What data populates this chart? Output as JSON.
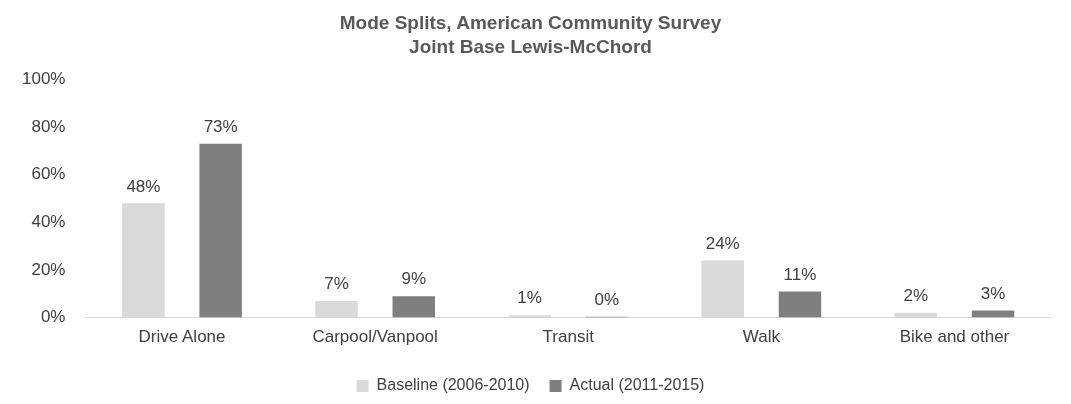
{
  "chart_data": {
    "type": "bar",
    "title": "Mode Splits, American Community Survey",
    "subtitle": "Joint Base Lewis-McChord",
    "categories": [
      "Drive Alone",
      "Carpool/Vanpool",
      "Transit",
      "Walk",
      "Bike and other"
    ],
    "series": [
      {
        "name": "Baseline (2006-2010)",
        "color": "#d9d9d9",
        "values": [
          48,
          7,
          1,
          24,
          2
        ],
        "value_labels": [
          "48%",
          "7%",
          "1%",
          "24%",
          "2%"
        ]
      },
      {
        "name": "Actual (2011-2015)",
        "color": "#7f7f7f",
        "values": [
          73,
          9,
          0.4,
          11,
          3
        ],
        "value_labels": [
          "73%",
          "9%",
          "0%",
          "11%",
          "3%"
        ]
      }
    ],
    "ylim": [
      0,
      100
    ],
    "yticks": [
      {
        "value": 0,
        "label": "0%"
      },
      {
        "value": 20,
        "label": "20%"
      },
      {
        "value": 40,
        "label": "40%"
      },
      {
        "value": 60,
        "label": "60%"
      },
      {
        "value": 80,
        "label": "80%"
      },
      {
        "value": 100,
        "label": "100%"
      }
    ],
    "grid": false,
    "legend": "bottom"
  }
}
